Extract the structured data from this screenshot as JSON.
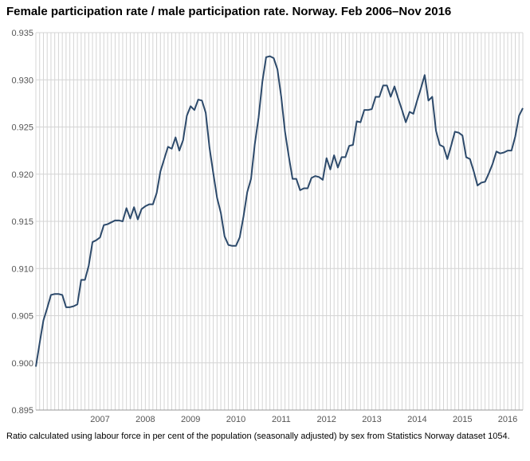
{
  "chart_data": {
    "type": "line",
    "title": "Female participation rate / male participation rate. Norway. Feb 2006–Nov 2016",
    "xlabel": "",
    "ylabel": "",
    "ylim": [
      0.895,
      0.935
    ],
    "y_ticks": [
      "0.935",
      "0.930",
      "0.925",
      "0.920",
      "0.915",
      "0.910",
      "0.905",
      "0.900",
      "0.895"
    ],
    "x_tick_labels": [
      "2007",
      "2008",
      "2009",
      "2010",
      "2011",
      "2012",
      "2013",
      "2014",
      "2015",
      "2016"
    ],
    "start": "2006-02",
    "end": "2016-11",
    "grid": true,
    "series": [
      {
        "name": "Female/male participation rate",
        "color": "#2d4a6b",
        "values": [
          0.8996,
          0.9021,
          0.9045,
          0.9058,
          0.9072,
          0.9073,
          0.9073,
          0.9072,
          0.9059,
          0.9059,
          0.906,
          0.9062,
          0.9088,
          0.9088,
          0.9103,
          0.9128,
          0.913,
          0.9133,
          0.9146,
          0.9147,
          0.9149,
          0.9151,
          0.9151,
          0.915,
          0.9164,
          0.9153,
          0.9165,
          0.9152,
          0.9163,
          0.9166,
          0.9168,
          0.9168,
          0.918,
          0.9203,
          0.9216,
          0.9229,
          0.9227,
          0.9239,
          0.9225,
          0.9236,
          0.9262,
          0.9272,
          0.9268,
          0.9279,
          0.9278,
          0.9265,
          0.9228,
          0.9201,
          0.9175,
          0.9159,
          0.9134,
          0.9125,
          0.9124,
          0.9124,
          0.9133,
          0.9155,
          0.9181,
          0.9195,
          0.9232,
          0.926,
          0.9298,
          0.9324,
          0.9325,
          0.9323,
          0.9311,
          0.9282,
          0.9245,
          0.9219,
          0.9195,
          0.9195,
          0.9183,
          0.9185,
          0.9185,
          0.9196,
          0.9198,
          0.9197,
          0.9194,
          0.9217,
          0.9205,
          0.922,
          0.9207,
          0.9218,
          0.9218,
          0.923,
          0.9231,
          0.9256,
          0.9255,
          0.9268,
          0.9268,
          0.9269,
          0.9282,
          0.9282,
          0.9294,
          0.9294,
          0.9282,
          0.9293,
          0.928,
          0.9268,
          0.9255,
          0.9266,
          0.9264,
          0.9278,
          0.9291,
          0.9305,
          0.9278,
          0.9282,
          0.9246,
          0.9231,
          0.9229,
          0.9216,
          0.923,
          0.9245,
          0.9244,
          0.9241,
          0.9218,
          0.9216,
          0.9203,
          0.9188,
          0.9191,
          0.9192,
          0.9201,
          0.9211,
          0.9224,
          0.9222,
          0.9223,
          0.9225,
          0.9225,
          0.924,
          0.9262,
          0.927
        ]
      }
    ]
  },
  "footnote": "Ratio calculated using labour force in per cent of the population (seasonally adjusted) by sex from Statistics Norway dataset 1054."
}
